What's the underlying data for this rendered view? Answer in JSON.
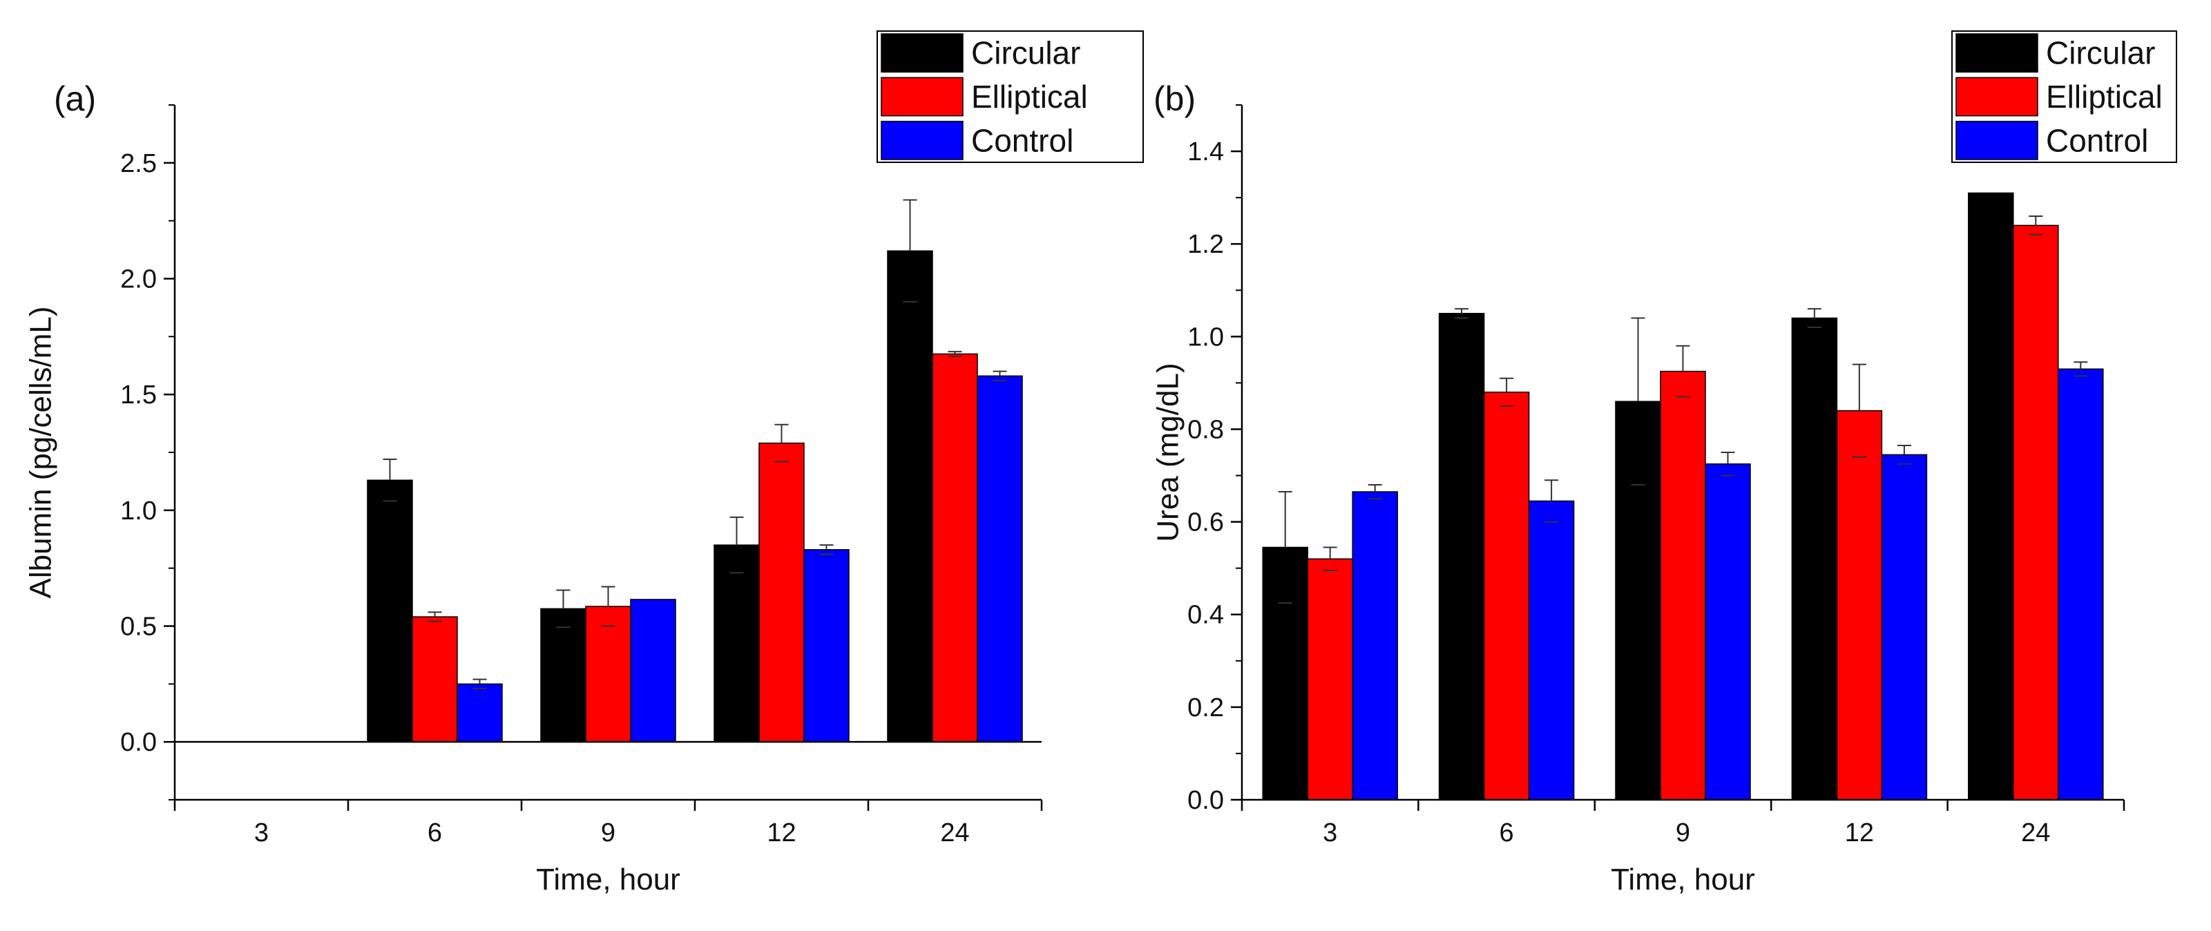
{
  "colors": {
    "Circular": "#000000",
    "Elliptical": "#ff0000",
    "Control": "#0000ff",
    "error_bar": "#333333"
  },
  "chart_data": [
    {
      "type": "bar",
      "panel_label": "(a)",
      "title": "",
      "xlabel": "Time, hour",
      "ylabel": "Albumin (pg/cells/mL)",
      "categories": [
        "3",
        "6",
        "9",
        "12",
        "24"
      ],
      "ylim": [
        -0.25,
        2.75
      ],
      "yticks": [
        0.0,
        0.5,
        1.0,
        1.5,
        2.0,
        2.5
      ],
      "ytick_labels": [
        "0.0",
        "0.5",
        "1.0",
        "1.5",
        "2.0",
        "2.5"
      ],
      "series": [
        {
          "name": "Circular",
          "values": [
            0,
            1.13,
            0.575,
            0.85,
            2.12
          ],
          "errors": [
            0,
            0.09,
            0.08,
            0.12,
            0.22
          ]
        },
        {
          "name": "Elliptical",
          "values": [
            0,
            0.54,
            0.585,
            1.29,
            1.675
          ],
          "errors": [
            0,
            0.02,
            0.085,
            0.08,
            0.01
          ]
        },
        {
          "name": "Control",
          "values": [
            0,
            0.25,
            0.615,
            0.83,
            1.58
          ],
          "errors": [
            0,
            0.02,
            0,
            0.02,
            0.02
          ]
        }
      ],
      "legend": {
        "entries": [
          "Circular",
          "Elliptical",
          "Control"
        ],
        "location": "top-right"
      }
    },
    {
      "type": "bar",
      "panel_label": "(b)",
      "title": "",
      "xlabel": "Time, hour",
      "ylabel": "Urea (mg/dL)",
      "categories": [
        "3",
        "6",
        "9",
        "12",
        "24"
      ],
      "ylim": [
        0.0,
        1.5
      ],
      "yticks": [
        0.0,
        0.2,
        0.4,
        0.6,
        0.8,
        1.0,
        1.2,
        1.4
      ],
      "ytick_labels": [
        "0.0",
        "0.2",
        "0.4",
        "0.6",
        "0.8",
        "1.0",
        "1.2",
        "1.4"
      ],
      "series": [
        {
          "name": "Circular",
          "values": [
            0.545,
            1.05,
            0.86,
            1.04,
            1.31
          ],
          "errors": [
            0.12,
            0.01,
            0.18,
            0.02,
            0
          ]
        },
        {
          "name": "Elliptical",
          "values": [
            0.52,
            0.88,
            0.925,
            0.84,
            1.24
          ],
          "errors": [
            0.025,
            0.03,
            0.055,
            0.1,
            0.02
          ]
        },
        {
          "name": "Control",
          "values": [
            0.665,
            0.645,
            0.725,
            0.745,
            0.93
          ],
          "errors": [
            0.015,
            0.045,
            0.025,
            0.02,
            0.015
          ]
        }
      ],
      "legend": {
        "entries": [
          "Circular",
          "Elliptical",
          "Control"
        ],
        "location": "top-right"
      }
    }
  ]
}
